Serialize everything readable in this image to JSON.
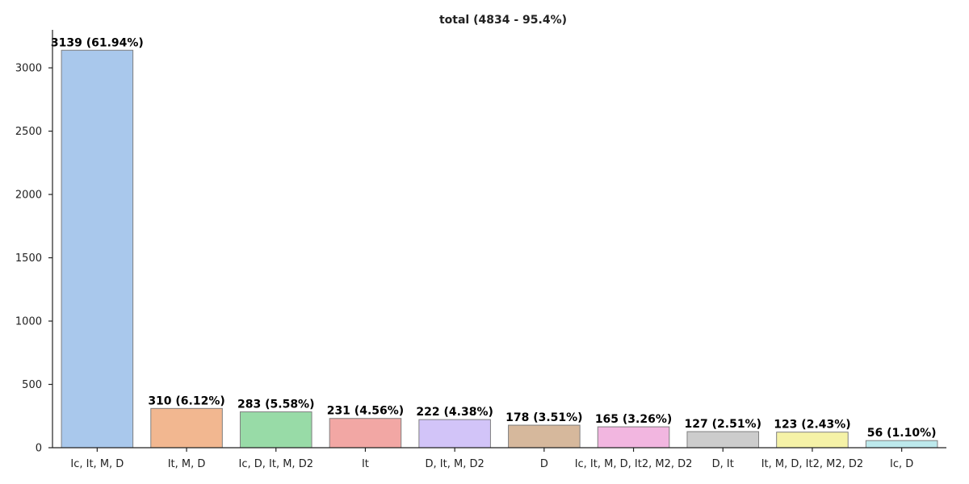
{
  "chart_data": {
    "type": "bar",
    "title": "total (4834 - 95.4%)",
    "xlabel": "",
    "ylabel": "",
    "ylim": [
      0,
      3300
    ],
    "yticks": [
      0,
      500,
      1000,
      1500,
      2000,
      2500,
      3000
    ],
    "grid": false,
    "legend": "none",
    "categories": [
      "Ic, It, M, D",
      "It, M, D",
      "Ic, D, It, M, D2",
      "It",
      "D, It, M, D2",
      "D",
      "Ic, It, M, D, It2, M2, D2",
      "D, It",
      "It, M, D, It2, M2, D2",
      "Ic, D"
    ],
    "values": [
      3139,
      310,
      283,
      231,
      222,
      178,
      165,
      127,
      123,
      56
    ],
    "labels": [
      "3139 (61.94%)",
      "310 (6.12%)",
      "283 (5.58%)",
      "231 (4.56%)",
      "222 (4.38%)",
      "178 (3.51%)",
      "165 (3.26%)",
      "127 (2.51%)",
      "123 (2.43%)",
      "56 (1.10%)"
    ],
    "colors": [
      "#a9c8ec",
      "#f2b790",
      "#98dba7",
      "#f2a7a4",
      "#d2c4f8",
      "#d6b89c",
      "#f2b6e0",
      "#cccccc",
      "#f5f2a7",
      "#bde9ec"
    ]
  }
}
